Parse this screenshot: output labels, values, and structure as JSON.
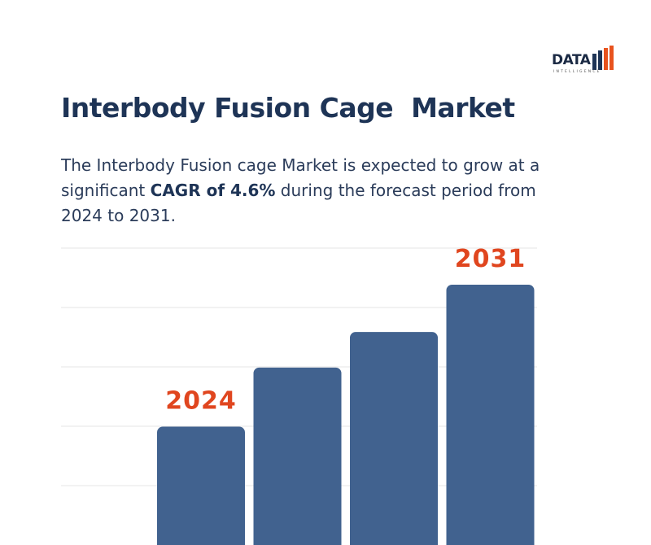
{
  "brand": {
    "name": "DATA",
    "tagline": "INTELLIGENCE",
    "colors": {
      "bars": [
        "#1e3456",
        "#1e3456",
        "#e8531e",
        "#e8531e"
      ]
    }
  },
  "title": "Interbody Fusion Cage  Market",
  "description": {
    "part1": "The Interbody Fusion cage Market is expected to grow at a significant ",
    "highlight": "CAGR of 4.6%",
    "part2": " during the forecast period from 2024 to 2031."
  },
  "chart_data": {
    "type": "bar",
    "categories": [
      "2024",
      "",
      "",
      "2031"
    ],
    "values": [
      100,
      150,
      180,
      220
    ],
    "data_labels": [
      "2024",
      "",
      "",
      "2031"
    ],
    "title": "",
    "xlabel": "",
    "ylabel": "",
    "ylim": [
      0,
      220
    ],
    "grid": true,
    "bar_color": "#41628f",
    "label_color": "#e0461f",
    "grid_color": "#e6e6e6"
  }
}
